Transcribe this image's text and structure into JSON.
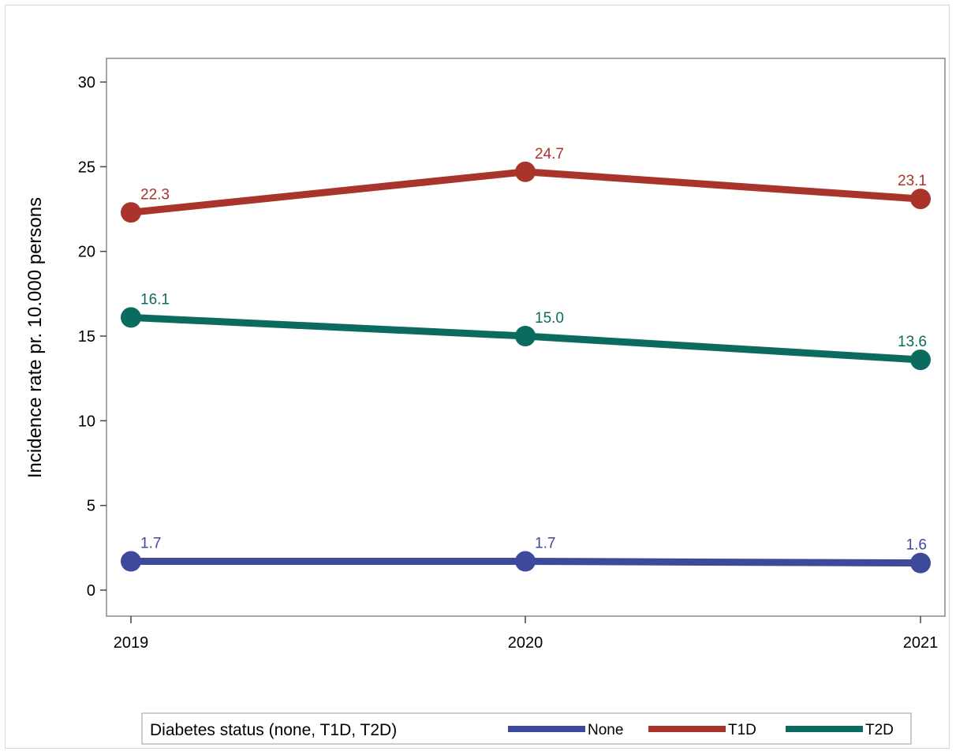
{
  "chart_data": {
    "type": "line",
    "title": "",
    "xlabel": "",
    "ylabel": "Incidence rate pr. 10.000 persons",
    "categories": [
      "2019",
      "2020",
      "2021"
    ],
    "ylim": [
      0,
      30
    ],
    "yticks": [
      0,
      5,
      10,
      15,
      20,
      25,
      30
    ],
    "grid": false,
    "legend": {
      "title": "Diabetes status (none, T1D, T2D)",
      "position": "bottom"
    },
    "series": [
      {
        "name": "None",
        "color": "#3d4a9a",
        "values": [
          1.7,
          1.7,
          1.6
        ],
        "labels": [
          "1.7",
          "1.7",
          "1.6"
        ]
      },
      {
        "name": "T1D",
        "color": "#a8342c",
        "values": [
          22.3,
          24.7,
          23.1
        ],
        "labels": [
          "22.3",
          "24.7",
          "23.1"
        ]
      },
      {
        "name": "T2D",
        "color": "#0b6b5f",
        "values": [
          16.1,
          15.0,
          13.6
        ],
        "labels": [
          "16.1",
          "15.0",
          "13.6"
        ]
      }
    ]
  }
}
